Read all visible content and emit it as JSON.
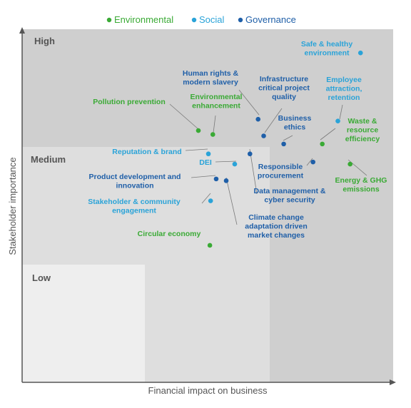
{
  "chart_data": {
    "type": "scatter",
    "xlabel": "Financial impact on business",
    "ylabel": "Stakeholder importance",
    "xlim": [
      0,
      100
    ],
    "ylim": [
      0,
      100
    ],
    "zones": [
      {
        "name": "High",
        "color": "#cfcfcf"
      },
      {
        "name": "Medium",
        "color": "#dedede"
      },
      {
        "name": "Low",
        "color": "#eeeeee"
      }
    ],
    "legend": [
      {
        "name": "Environmental",
        "color": "#3aaa35"
      },
      {
        "name": "Social",
        "color": "#2aa3d8"
      },
      {
        "name": "Governance",
        "color": "#1f5fa8"
      }
    ],
    "points": [
      {
        "label": [
          "Safe & healthy",
          "environment"
        ],
        "category": "Social",
        "x": 91.2,
        "y": 93.3
      },
      {
        "label": [
          "Human rights &",
          "modern slavery"
        ],
        "category": "Governance",
        "x": 63.6,
        "y": 74.5
      },
      {
        "label": [
          "Infrastructure",
          "critical project",
          "quality"
        ],
        "category": "Governance",
        "x": 65.1,
        "y": 69.8
      },
      {
        "label": [
          "Employee",
          "attraction,",
          "retention"
        ],
        "category": "Social",
        "x": 85.1,
        "y": 74.0
      },
      {
        "label": [
          "Pollution prevention"
        ],
        "category": "Environmental",
        "x": 47.5,
        "y": 71.3
      },
      {
        "label": [
          "Environmental",
          "enhancement"
        ],
        "category": "Environmental",
        "x": 51.4,
        "y": 70.2
      },
      {
        "label": [
          "Business",
          "ethics"
        ],
        "category": "Governance",
        "x": 70.5,
        "y": 67.5
      },
      {
        "label": [
          "Waste &",
          "resource",
          "efficiency"
        ],
        "category": "Environmental",
        "x": 80.9,
        "y": 67.5
      },
      {
        "label": [
          "Reputation & brand"
        ],
        "category": "Social",
        "x": 50.2,
        "y": 64.7
      },
      {
        "label": [
          "DEI"
        ],
        "category": "Social",
        "x": 57.3,
        "y": 61.8
      },
      {
        "label": [
          "Data management &",
          "cyber security"
        ],
        "category": "Governance",
        "x": 61.4,
        "y": 64.7
      },
      {
        "label": [
          "Responsible",
          "procurement"
        ],
        "category": "Governance",
        "x": 78.4,
        "y": 62.4
      },
      {
        "label": [
          "Energy & GHG",
          "emissions"
        ],
        "category": "Environmental",
        "x": 88.4,
        "y": 61.8
      },
      {
        "label": [
          "Product development and",
          "innovation"
        ],
        "category": "Governance",
        "x": 52.3,
        "y": 57.6
      },
      {
        "label": [
          "Climate change",
          "adaptation driven",
          "market changes"
        ],
        "category": "Governance",
        "x": 55.0,
        "y": 57.1
      },
      {
        "label": [
          "Stakeholder & community",
          "engagement"
        ],
        "category": "Social",
        "x": 50.8,
        "y": 51.4
      },
      {
        "label": [
          "Circular economy"
        ],
        "category": "Environmental",
        "x": 50.6,
        "y": 38.8
      }
    ]
  }
}
